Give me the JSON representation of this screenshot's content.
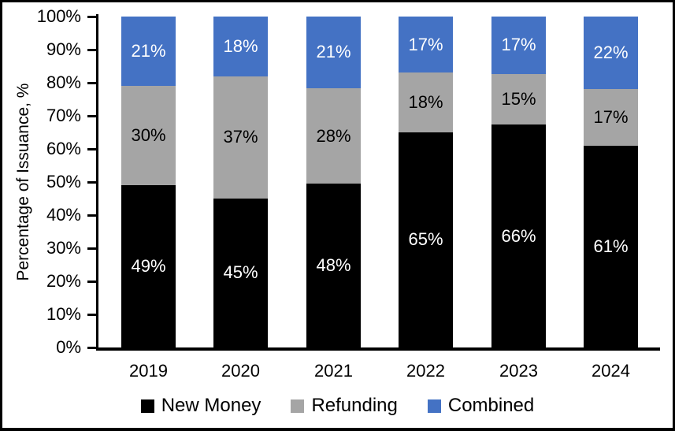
{
  "chart_data": {
    "type": "bar",
    "stacked": true,
    "percent_stacked": true,
    "categories": [
      "2019",
      "2020",
      "2021",
      "2022",
      "2023",
      "2024"
    ],
    "series": [
      {
        "name": "New Money",
        "color": "#000000",
        "label_color": "#ffffff",
        "values": [
          49,
          45,
          48,
          65,
          66,
          61
        ]
      },
      {
        "name": "Refunding",
        "color": "#a5a5a5",
        "label_color": "#000000",
        "values": [
          30,
          37,
          28,
          18,
          15,
          17
        ]
      },
      {
        "name": "Combined",
        "color": "#4472c4",
        "label_color": "#ffffff",
        "values": [
          21,
          18,
          21,
          17,
          17,
          22
        ]
      }
    ],
    "title": "",
    "xlabel": "",
    "ylabel": "Percentage of Issuance, %",
    "ylim": [
      0,
      100
    ],
    "ytick_step": 10,
    "ytick_suffix": "%",
    "value_label_suffix": "%",
    "grid": false,
    "legend_position": "bottom",
    "axis_color": "#000000",
    "background_color": "#ffffff",
    "frame_border_color": "#000000"
  }
}
